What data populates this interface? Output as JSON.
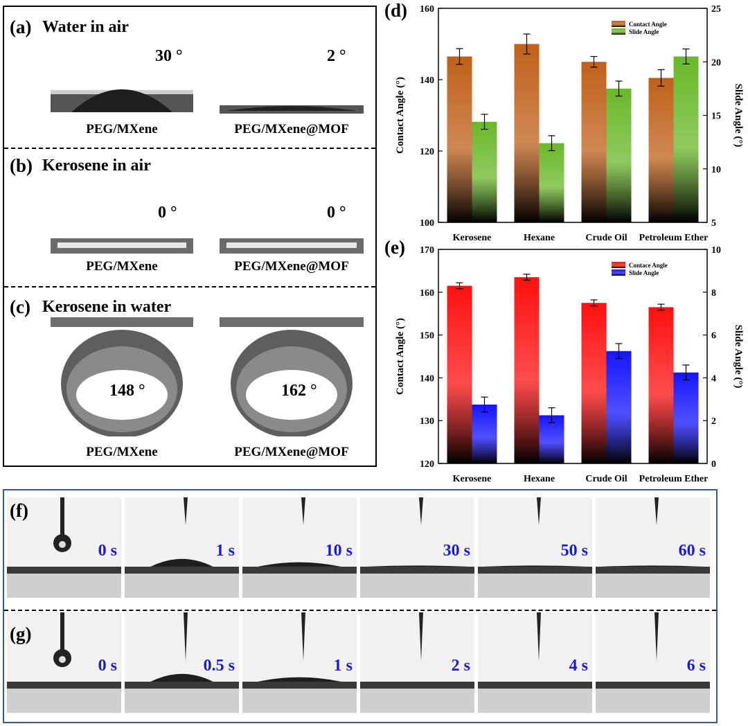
{
  "left_panel": {
    "a": {
      "label": "(a)",
      "title": "Water in air",
      "left_angle": "30 °",
      "right_angle": "2 °",
      "left_sample": "PEG/MXene",
      "right_sample": "PEG/MXene@MOF"
    },
    "b": {
      "label": "(b)",
      "title": "Kerosene in air",
      "left_angle": "0 °",
      "right_angle": "0 °",
      "left_sample": "PEG/MXene",
      "right_sample": "PEG/MXene@MOF"
    },
    "c": {
      "label": "(c)",
      "title": "Kerosene in water",
      "left_angle": "148 °",
      "right_angle": "162 °",
      "left_sample": "PEG/MXene",
      "right_sample": "PEG/MXene@MOF"
    }
  },
  "chart_data": [
    {
      "panel": "(d)",
      "type": "bar",
      "categories": [
        "Kerosene",
        "Hexane",
        "Crude Oil",
        "Petroleum Ether"
      ],
      "ylabel": "Contact Angle (°)",
      "y2label": "Slide Angle (°)",
      "ylim": [
        100,
        160
      ],
      "y2lim": [
        5,
        25
      ],
      "yticks": [
        100,
        120,
        140,
        160
      ],
      "y2ticks": [
        5,
        10,
        15,
        20,
        25
      ],
      "legend_position": "top-right",
      "series": [
        {
          "name": "Contact Angle",
          "axis": "left",
          "color": "#c0601a",
          "values": [
            146.5,
            150,
            145,
            140.5
          ],
          "errors": [
            2.2,
            2.8,
            1.5,
            2.3
          ]
        },
        {
          "name": "Slide Angle",
          "axis": "right",
          "color": "#6ab82a",
          "values": [
            14.4,
            12.4,
            17.5,
            20.5
          ],
          "errors": [
            0.7,
            0.7,
            0.7,
            0.7
          ]
        }
      ]
    },
    {
      "panel": "(e)",
      "type": "bar",
      "categories": [
        "Kerosene",
        "Hexane",
        "Crude Oil",
        "Petroleum Ether"
      ],
      "ylabel": "Contact Angle (°)",
      "y2label": "Slide Angle (°)",
      "ylim": [
        120,
        170
      ],
      "y2lim": [
        0,
        10
      ],
      "yticks": [
        120,
        130,
        140,
        150,
        160,
        170
      ],
      "y2ticks": [
        0,
        2,
        4,
        6,
        8,
        10
      ],
      "legend_position": "top-right",
      "series": [
        {
          "name": "Contace Angle",
          "axis": "left",
          "color": "#ff1010",
          "values": [
            161.5,
            163.5,
            157.5,
            156.5
          ],
          "errors": [
            0.7,
            0.7,
            0.7,
            0.7
          ]
        },
        {
          "name": "Slide Angle",
          "axis": "right",
          "color": "#1515ff",
          "values": [
            2.75,
            2.25,
            5.25,
            4.25
          ],
          "errors": [
            0.35,
            0.35,
            0.35,
            0.35
          ]
        }
      ]
    }
  ],
  "time_series": {
    "f": {
      "label": "(f)",
      "times": [
        "0 s",
        "1 s",
        "10 s",
        "30 s",
        "50 s",
        "60 s"
      ]
    },
    "g": {
      "label": "(g)",
      "times": [
        "0 s",
        "0.5 s",
        "1 s",
        "2 s",
        "4 s",
        "6 s"
      ]
    }
  }
}
